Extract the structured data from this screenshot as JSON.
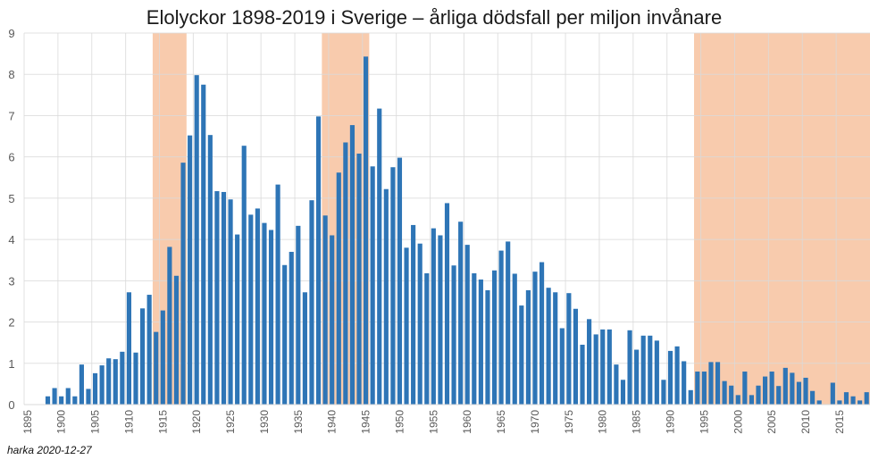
{
  "chart_data": {
    "type": "bar",
    "title": "Elolyckor 1898-2019 i Sverige – årliga dödsfall per miljon invånare",
    "xlabel": "",
    "ylabel": "",
    "ylim": [
      0,
      9
    ],
    "yticks": [
      0,
      1,
      2,
      3,
      4,
      5,
      6,
      7,
      8,
      9
    ],
    "xrange": [
      1895,
      2019
    ],
    "xticks": [
      1895,
      1900,
      1905,
      1910,
      1915,
      1920,
      1925,
      1930,
      1935,
      1940,
      1945,
      1950,
      1955,
      1960,
      1965,
      1970,
      1975,
      1980,
      1985,
      1990,
      1995,
      2000,
      2005,
      2010,
      2015
    ],
    "grid": true,
    "bar_color": "#2E75B6",
    "highlight_color": "#F8CBAD",
    "highlighted_periods": [
      {
        "from": 1914,
        "to": 1918
      },
      {
        "from": 1939,
        "to": 1945
      },
      {
        "from": 1994,
        "to": 2019
      }
    ],
    "x": [
      1898,
      1899,
      1900,
      1901,
      1902,
      1903,
      1904,
      1905,
      1906,
      1907,
      1908,
      1909,
      1910,
      1911,
      1912,
      1913,
      1914,
      1915,
      1916,
      1917,
      1918,
      1919,
      1920,
      1921,
      1922,
      1923,
      1924,
      1925,
      1926,
      1927,
      1928,
      1929,
      1930,
      1931,
      1932,
      1933,
      1934,
      1935,
      1936,
      1937,
      1938,
      1939,
      1940,
      1941,
      1942,
      1943,
      1944,
      1945,
      1946,
      1947,
      1948,
      1949,
      1950,
      1951,
      1952,
      1953,
      1954,
      1955,
      1956,
      1957,
      1958,
      1959,
      1960,
      1961,
      1962,
      1963,
      1964,
      1965,
      1966,
      1967,
      1968,
      1969,
      1970,
      1971,
      1972,
      1973,
      1974,
      1975,
      1976,
      1977,
      1978,
      1979,
      1980,
      1981,
      1982,
      1983,
      1984,
      1985,
      1986,
      1987,
      1988,
      1989,
      1990,
      1991,
      1992,
      1993,
      1994,
      1995,
      1996,
      1997,
      1998,
      1999,
      2000,
      2001,
      2002,
      2003,
      2004,
      2005,
      2006,
      2007,
      2008,
      2009,
      2010,
      2011,
      2012,
      2013,
      2014,
      2015,
      2016,
      2017,
      2018,
      2019
    ],
    "values": [
      0.2,
      0.4,
      0.2,
      0.4,
      0.2,
      0.97,
      0.38,
      0.76,
      0.95,
      1.12,
      1.1,
      1.28,
      2.72,
      1.26,
      2.33,
      2.66,
      1.76,
      2.28,
      3.82,
      3.12,
      5.86,
      6.52,
      7.98,
      7.75,
      6.53,
      5.17,
      5.15,
      4.97,
      4.12,
      6.27,
      4.6,
      4.75,
      4.4,
      4.23,
      5.33,
      3.38,
      3.7,
      4.33,
      2.72,
      4.95,
      6.98,
      4.58,
      4.1,
      5.62,
      6.35,
      6.77,
      6.08,
      8.43,
      5.77,
      7.17,
      5.22,
      5.75,
      5.98,
      3.8,
      4.35,
      3.9,
      3.18,
      4.27,
      4.1,
      4.88,
      3.37,
      4.43,
      3.87,
      3.18,
      3.03,
      2.77,
      3.25,
      3.73,
      3.95,
      3.17,
      2.4,
      2.77,
      3.22,
      3.45,
      2.83,
      2.72,
      1.85,
      2.7,
      2.32,
      1.45,
      2.07,
      1.7,
      1.82,
      1.82,
      0.97,
      0.6,
      1.8,
      1.33,
      1.67,
      1.67,
      1.55,
      0.6,
      1.3,
      1.41,
      1.05,
      0.35,
      0.8,
      0.8,
      1.03,
      1.03,
      0.57,
      0.46,
      0.23,
      0.8,
      0.23,
      0.46,
      0.68,
      0.8,
      0.45,
      0.89,
      0.77,
      0.55,
      0.65,
      0.33,
      0.1,
      0,
      0.53,
      0.1,
      0.3,
      0.2,
      0.1,
      0.3
    ]
  },
  "footer": {
    "credit": "harka 2020-12-27"
  }
}
